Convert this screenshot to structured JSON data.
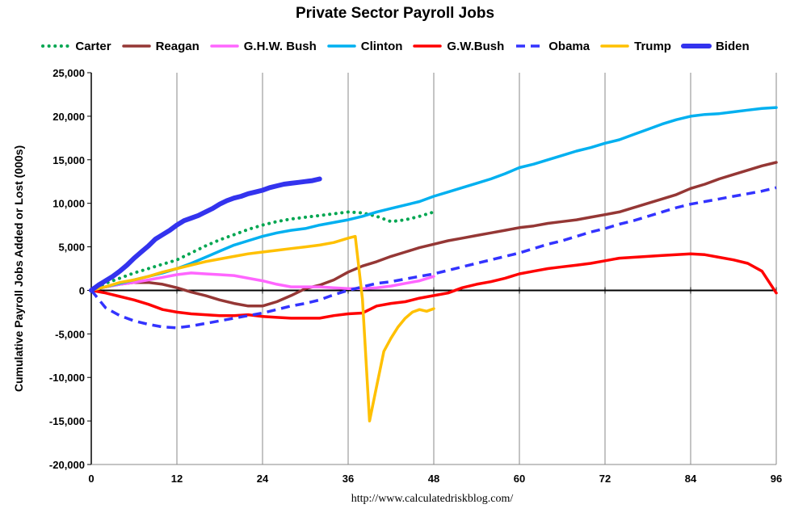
{
  "chart_data": {
    "type": "line",
    "title": "Private Sector Payroll Jobs",
    "ylabel": "Cumulative Payroll Jobs Added or  Lost (000s)",
    "xlabel": "",
    "source": "http://www.calculatedriskblog.com/",
    "xlim": [
      0,
      96
    ],
    "ylim": [
      -20000,
      25000
    ],
    "x_ticks": [
      0,
      12,
      24,
      36,
      48,
      60,
      72,
      84,
      96
    ],
    "y_ticks": [
      {
        "value": 25000,
        "label": "25,000"
      },
      {
        "value": 20000,
        "label": "20,000"
      },
      {
        "value": 15000,
        "label": "15,000"
      },
      {
        "value": 10000,
        "label": "10,000"
      },
      {
        "value": 5000,
        "label": "5,000"
      },
      {
        "value": 0,
        "label": "0"
      },
      {
        "value": -5000,
        "label": "-5,000"
      },
      {
        "value": -10000,
        "label": "-10,000"
      },
      {
        "value": -15000,
        "label": "-15,000"
      },
      {
        "value": -20000,
        "label": "-20,000"
      }
    ],
    "grid": "vertical",
    "legend": "top",
    "series": [
      {
        "name": "Carter",
        "color": "#00A651",
        "style": "dotted",
        "x": [
          0,
          2,
          4,
          6,
          8,
          10,
          12,
          14,
          16,
          18,
          20,
          22,
          24,
          26,
          28,
          30,
          32,
          34,
          36,
          38,
          40,
          42,
          44,
          46,
          48
        ],
        "y": [
          0,
          800,
          1400,
          2000,
          2500,
          3000,
          3500,
          4300,
          5100,
          5800,
          6400,
          7000,
          7500,
          7900,
          8200,
          8400,
          8600,
          8800,
          9000,
          8900,
          8500,
          7900,
          8100,
          8500,
          9000
        ]
      },
      {
        "name": "Reagan",
        "color": "#953735",
        "style": "solid",
        "x": [
          0,
          2,
          4,
          6,
          8,
          10,
          12,
          14,
          16,
          18,
          20,
          22,
          24,
          26,
          28,
          30,
          32,
          34,
          36,
          38,
          40,
          42,
          44,
          46,
          48,
          50,
          52,
          54,
          56,
          58,
          60,
          62,
          64,
          66,
          68,
          70,
          72,
          74,
          76,
          78,
          80,
          82,
          84,
          86,
          88,
          90,
          92,
          94,
          96
        ],
        "y": [
          0,
          400,
          700,
          900,
          900,
          700,
          300,
          -200,
          -600,
          -1100,
          -1500,
          -1800,
          -1800,
          -1300,
          -600,
          200,
          600,
          1200,
          2100,
          2800,
          3300,
          3900,
          4400,
          4900,
          5300,
          5700,
          6000,
          6300,
          6600,
          6900,
          7200,
          7400,
          7700,
          7900,
          8100,
          8400,
          8700,
          9000,
          9500,
          10000,
          10500,
          11000,
          11700,
          12200,
          12800,
          13300,
          13800,
          14300,
          14700
        ]
      },
      {
        "name": "G.H.W. Bush",
        "color": "#FF66FF",
        "style": "solid",
        "x": [
          0,
          2,
          4,
          6,
          8,
          10,
          12,
          14,
          16,
          18,
          20,
          22,
          24,
          26,
          28,
          30,
          32,
          34,
          36,
          38,
          40,
          42,
          44,
          46,
          48
        ],
        "y": [
          0,
          400,
          700,
          900,
          1200,
          1500,
          1800,
          2000,
          1900,
          1800,
          1700,
          1400,
          1100,
          700,
          400,
          400,
          400,
          300,
          200,
          200,
          300,
          500,
          800,
          1100,
          1600
        ]
      },
      {
        "name": "Clinton",
        "color": "#00B0F0",
        "style": "solid",
        "x": [
          0,
          2,
          4,
          6,
          8,
          10,
          12,
          14,
          16,
          18,
          20,
          22,
          24,
          26,
          28,
          30,
          32,
          34,
          36,
          38,
          40,
          42,
          44,
          46,
          48,
          50,
          52,
          54,
          56,
          58,
          60,
          62,
          64,
          66,
          68,
          70,
          72,
          74,
          76,
          78,
          80,
          82,
          84,
          86,
          88,
          90,
          92,
          94,
          96
        ],
        "y": [
          0,
          400,
          800,
          1200,
          1600,
          2000,
          2500,
          3100,
          3800,
          4500,
          5200,
          5700,
          6200,
          6600,
          6900,
          7100,
          7500,
          7800,
          8100,
          8500,
          9000,
          9400,
          9800,
          10200,
          10800,
          11300,
          11800,
          12300,
          12800,
          13400,
          14100,
          14500,
          15000,
          15500,
          16000,
          16400,
          16900,
          17300,
          17900,
          18500,
          19100,
          19600,
          20000,
          20200,
          20300,
          20500,
          20700,
          20900,
          21000
        ]
      },
      {
        "name": "G.W.Bush",
        "color": "#FF0000",
        "style": "solid",
        "x": [
          0,
          2,
          4,
          6,
          8,
          10,
          12,
          14,
          16,
          18,
          20,
          22,
          24,
          26,
          28,
          30,
          32,
          34,
          36,
          38,
          40,
          42,
          44,
          46,
          48,
          50,
          52,
          54,
          56,
          58,
          60,
          62,
          64,
          66,
          68,
          70,
          72,
          74,
          76,
          78,
          80,
          82,
          84,
          86,
          88,
          90,
          92,
          94,
          96
        ],
        "y": [
          0,
          -300,
          -700,
          -1100,
          -1600,
          -2200,
          -2500,
          -2700,
          -2800,
          -2900,
          -2900,
          -2800,
          -3000,
          -3100,
          -3200,
          -3200,
          -3200,
          -2900,
          -2700,
          -2600,
          -1800,
          -1500,
          -1300,
          -900,
          -600,
          -300,
          300,
          700,
          1000,
          1400,
          1900,
          2200,
          2500,
          2700,
          2900,
          3100,
          3400,
          3700,
          3800,
          3900,
          4000,
          4100,
          4200,
          4100,
          3800,
          3500,
          3100,
          2200,
          -300
        ]
      },
      {
        "name": "Obama",
        "color": "#3333FF",
        "style": "dashed",
        "x": [
          0,
          2,
          4,
          6,
          8,
          10,
          12,
          14,
          16,
          18,
          20,
          22,
          24,
          26,
          28,
          30,
          32,
          34,
          36,
          38,
          40,
          42,
          44,
          46,
          48,
          50,
          52,
          54,
          56,
          58,
          60,
          62,
          64,
          66,
          68,
          70,
          72,
          74,
          76,
          78,
          80,
          82,
          84,
          86,
          88,
          90,
          92,
          94,
          96
        ],
        "y": [
          0,
          -2000,
          -2900,
          -3500,
          -3900,
          -4200,
          -4300,
          -4100,
          -3800,
          -3500,
          -3200,
          -2900,
          -2600,
          -2200,
          -1800,
          -1500,
          -1100,
          -500,
          0,
          400,
          800,
          1000,
          1300,
          1600,
          1900,
          2300,
          2700,
          3100,
          3500,
          3900,
          4300,
          4800,
          5300,
          5700,
          6200,
          6700,
          7100,
          7600,
          8000,
          8500,
          9000,
          9500,
          9900,
          10200,
          10500,
          10800,
          11100,
          11400,
          11800
        ]
      },
      {
        "name": "Trump",
        "color": "#FFC000",
        "style": "solid",
        "x": [
          0,
          2,
          4,
          6,
          8,
          10,
          12,
          14,
          16,
          18,
          20,
          22,
          24,
          26,
          28,
          30,
          32,
          34,
          36,
          37,
          38,
          39,
          40,
          41,
          42,
          43,
          44,
          45,
          46,
          47,
          48
        ],
        "y": [
          0,
          400,
          900,
          1200,
          1600,
          2100,
          2500,
          2900,
          3300,
          3600,
          3900,
          4200,
          4400,
          4600,
          4800,
          5000,
          5200,
          5500,
          6000,
          6200,
          -1000,
          -15000,
          -11000,
          -7000,
          -5500,
          -4200,
          -3200,
          -2500,
          -2200,
          -2400,
          -2100
        ]
      },
      {
        "name": "Biden",
        "color": "#3333EE",
        "style": "thick",
        "x": [
          0,
          1,
          2,
          3,
          4,
          5,
          6,
          7,
          8,
          9,
          10,
          11,
          12,
          13,
          14,
          15,
          16,
          17,
          18,
          19,
          20,
          21,
          22,
          23,
          24,
          25,
          26,
          27,
          28,
          29,
          30,
          31,
          32
        ],
        "y": [
          0,
          600,
          1100,
          1600,
          2200,
          2900,
          3700,
          4400,
          5100,
          5900,
          6400,
          6900,
          7500,
          8000,
          8300,
          8600,
          9000,
          9400,
          9900,
          10300,
          10600,
          10800,
          11100,
          11300,
          11500,
          11800,
          12000,
          12200,
          12300,
          12400,
          12500,
          12600,
          12800
        ]
      }
    ]
  }
}
